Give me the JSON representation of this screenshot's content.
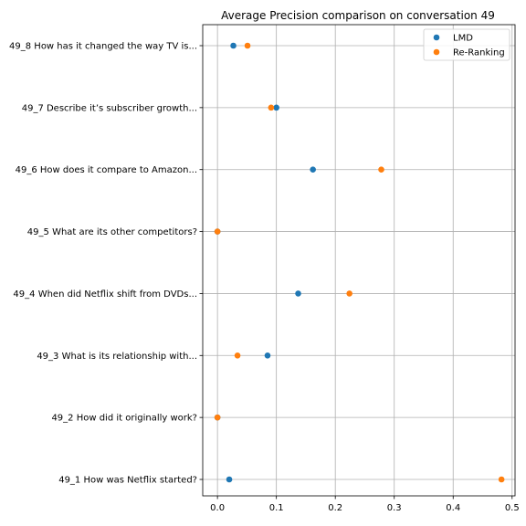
{
  "chart_data": {
    "type": "scatter",
    "title": "Average Precision comparison on conversation 49",
    "xlabel": "",
    "ylabel": "",
    "xlim": [
      -0.025,
      0.505
    ],
    "xticks": [
      0.0,
      0.1,
      0.2,
      0.3,
      0.4,
      0.5
    ],
    "xtick_labels": [
      "0.0",
      "0.1",
      "0.2",
      "0.3",
      "0.4",
      "0.5"
    ],
    "grid": true,
    "legend_position": "top-right",
    "categories": [
      "49_1 How was Netflix started?",
      "49_2 How did it originally work?",
      "49_3 What is its relationship with...",
      "49_4 When did Netflix shift from DVDs...",
      "49_5 What are its other competitors?",
      "49_6 How does it compare to Amazon...",
      "49_7 Describe it’s subscriber growth...",
      "49_8 How has it changed the way TV is..."
    ],
    "series": [
      {
        "name": "LMD",
        "color": "#1f77b4",
        "values": [
          0.02,
          0.0,
          0.085,
          0.137,
          0.0,
          0.162,
          0.1,
          0.027
        ]
      },
      {
        "name": "Re-Ranking",
        "color": "#ff7f0e",
        "values": [
          0.482,
          0.0,
          0.034,
          0.224,
          0.0,
          0.278,
          0.091,
          0.051
        ]
      }
    ]
  }
}
